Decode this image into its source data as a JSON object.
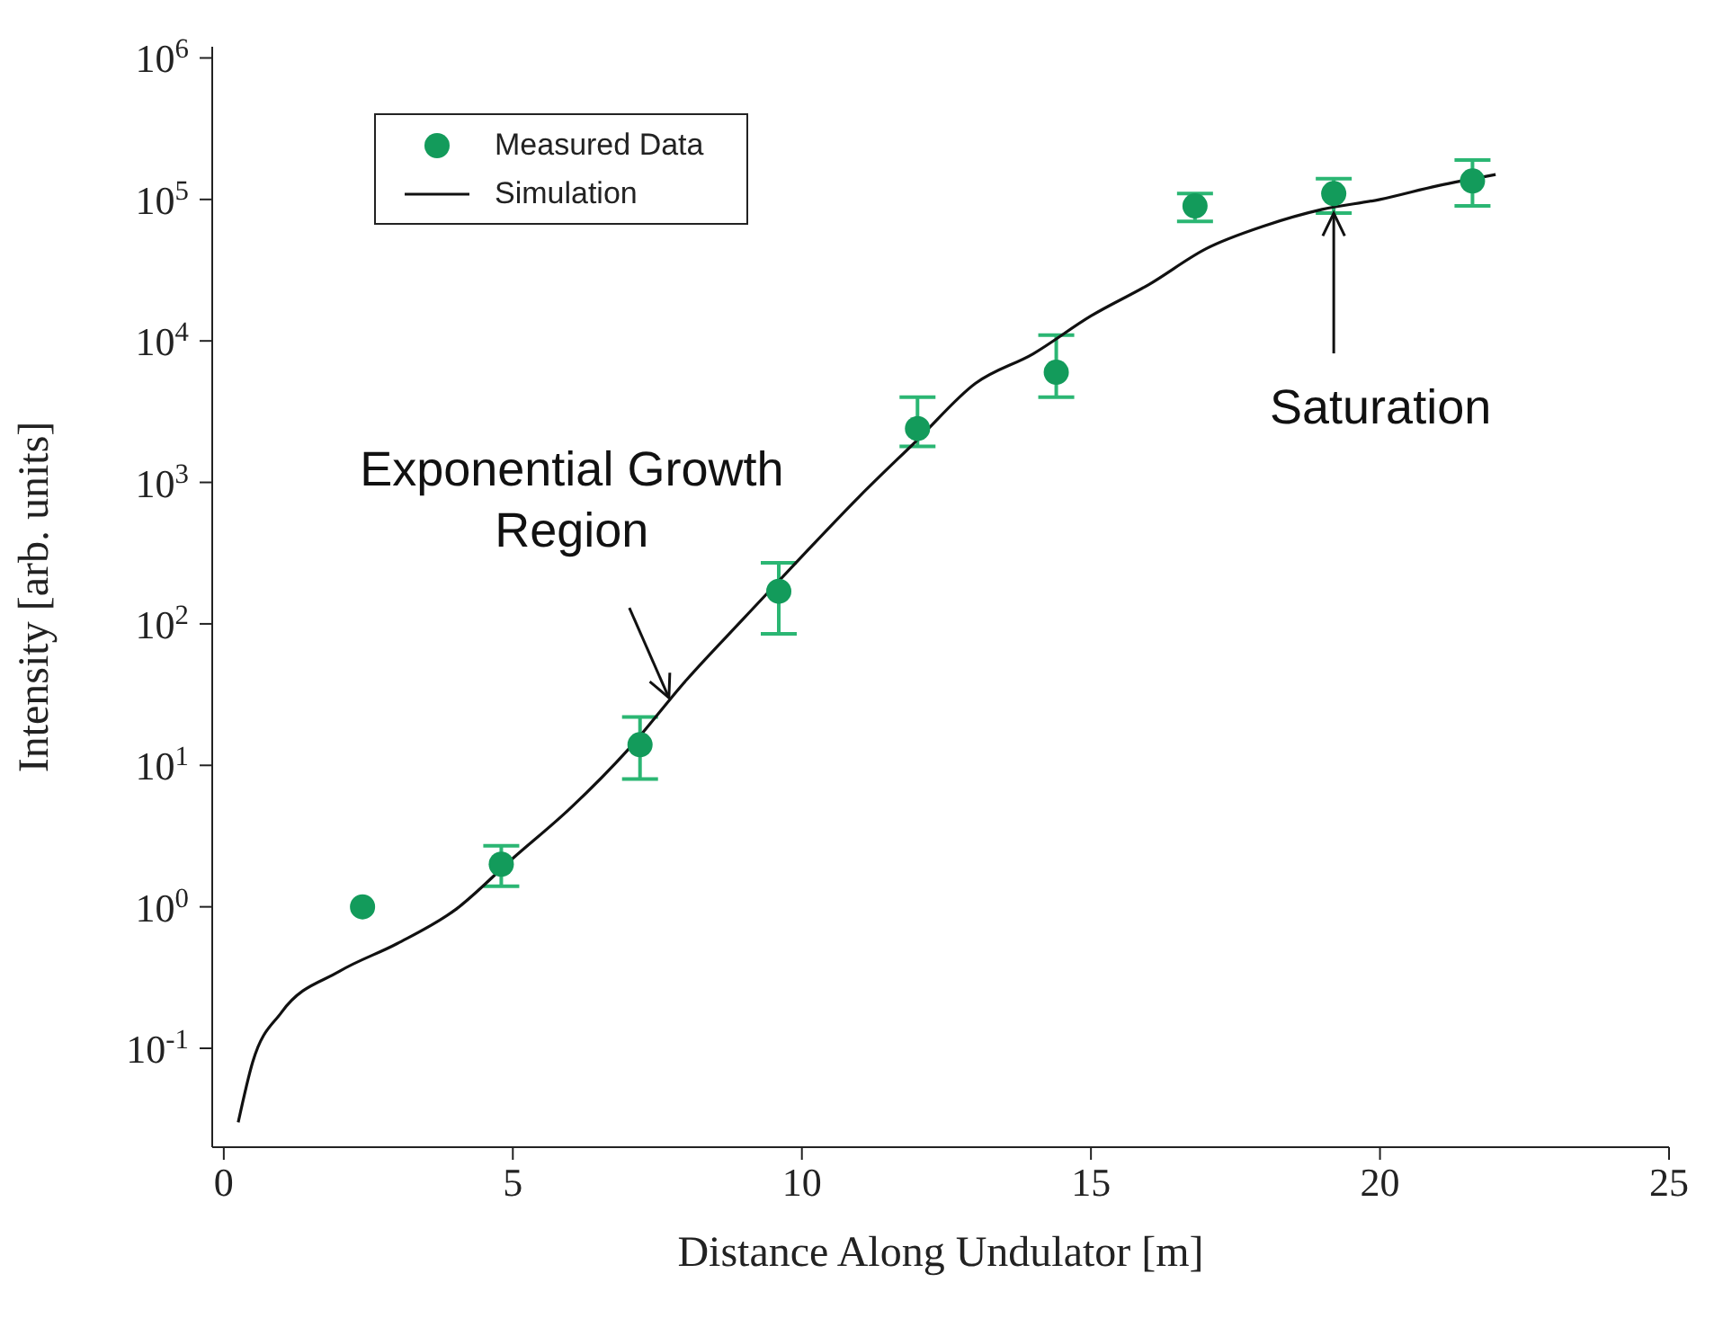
{
  "chart_data": {
    "type": "scatter",
    "xlabel": "Distance Along Undulator [m]",
    "ylabel": "Intensity [arb. units]",
    "log": "y",
    "xlim": [
      -0.2,
      25
    ],
    "xticks": [
      0,
      5,
      10,
      15,
      20,
      25
    ],
    "ylim": [
      0.02,
      1200000
    ],
    "yticks": [
      {
        "value": 0.1,
        "label": "10$^{-1}$"
      },
      {
        "value": 1,
        "label": "10$^{0}$"
      },
      {
        "value": 10,
        "label": "10$^{1}$"
      },
      {
        "value": 100,
        "label": "10$^{2}$"
      },
      {
        "value": 1000,
        "label": "10$^{3}$"
      },
      {
        "value": 10000,
        "label": "10$^{4}$"
      },
      {
        "value": 100000,
        "label": "10$^{5}$"
      },
      {
        "value": 1000000,
        "label": "10$^{6}$"
      }
    ],
    "grid": false,
    "legend": "top left",
    "marker": "circle",
    "series": [
      {
        "name": "Measured Data",
        "color": "#139b5b",
        "x": [
          2.4,
          4.8,
          7.2,
          9.6,
          12.0,
          14.4,
          16.8,
          19.2,
          21.6
        ],
        "values": [
          1.0,
          2.0,
          14,
          170,
          2400,
          6000,
          90000,
          110000,
          135000
        ],
        "errors": [
          null,
          [
            1.4,
            2.7
          ],
          [
            8,
            22
          ],
          [
            85,
            270
          ],
          [
            1800,
            4000
          ],
          [
            4000,
            11000
          ],
          [
            70000,
            110000
          ],
          [
            80000,
            140000
          ],
          [
            90000,
            190000
          ]
        ]
      },
      {
        "name": "Simulation",
        "type": "line",
        "color": "#111111",
        "line_style": "solid",
        "marker": "none",
        "x": [
          0.25,
          0.5,
          1,
          2,
          3,
          4,
          5,
          6,
          7,
          8,
          9,
          10,
          11,
          12,
          13,
          14,
          15,
          16,
          17,
          18,
          19,
          20,
          21,
          22.0
        ],
        "values": [
          0.03,
          0.08,
          0.18,
          0.35,
          0.55,
          0.95,
          2.2,
          5,
          13,
          40,
          110,
          300,
          800,
          2000,
          5000,
          8100,
          15000,
          25000,
          45000,
          65000,
          85000,
          100000,
          125000,
          150000
        ]
      }
    ],
    "annotations": [
      {
        "text": "Exponential Growth Region",
        "x": 7.7,
        "y": 30
      },
      {
        "text": "Saturation",
        "x": 19.2,
        "y": 80000
      }
    ]
  }
}
